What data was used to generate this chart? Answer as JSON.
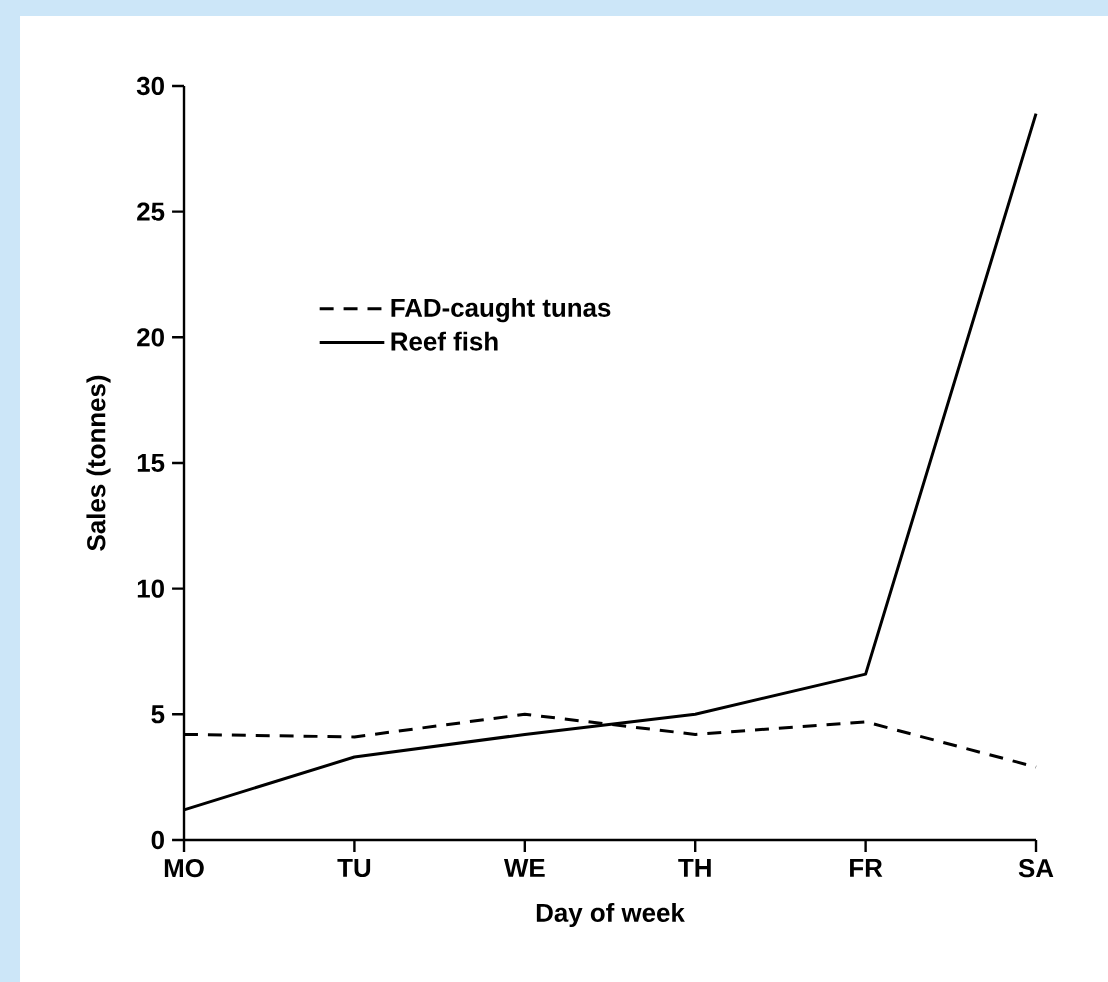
{
  "chart_data": {
    "type": "line",
    "xlabel": "Day of week",
    "ylabel": "Sales (tonnes)",
    "categories": [
      "MO",
      "TU",
      "WE",
      "TH",
      "FR",
      "SA"
    ],
    "ylim": [
      0,
      30
    ],
    "yticks": [
      0,
      5,
      10,
      15,
      20,
      25,
      30
    ],
    "grid": false,
    "legend": "top left",
    "marker": "none",
    "series": [
      {
        "name": "FAD-caught tunas",
        "color": "#000000",
        "line_style": "dashed",
        "values": [
          4.2,
          4.1,
          5.0,
          4.2,
          4.7,
          2.9
        ]
      },
      {
        "name": "Reef fish",
        "color": "#000000",
        "line_style": "solid",
        "values": [
          1.2,
          3.3,
          4.2,
          5.0,
          6.6,
          28.9
        ]
      }
    ]
  }
}
